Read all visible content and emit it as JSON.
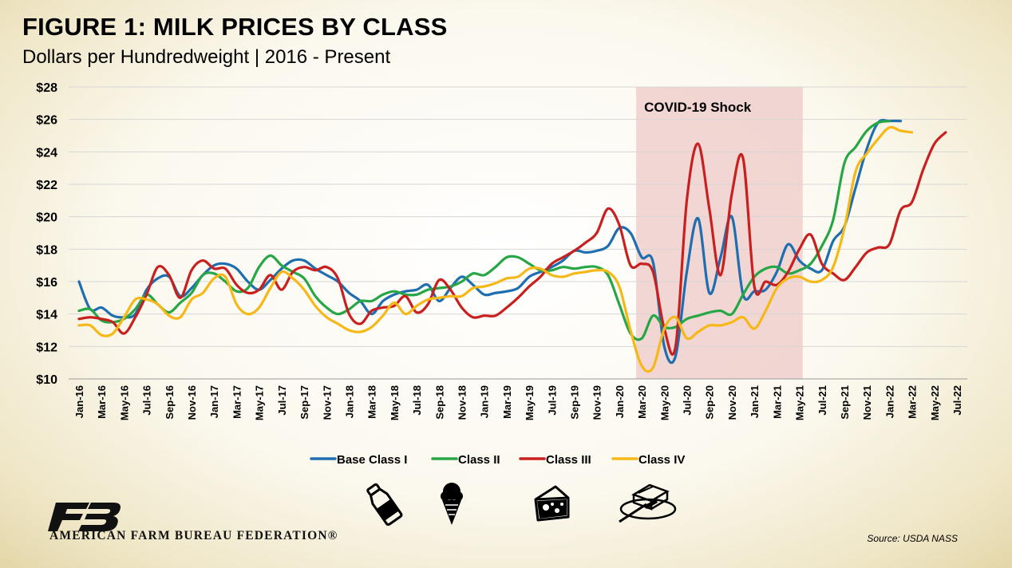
{
  "title": "FIGURE 1: MILK PRICES BY CLASS",
  "subtitle": "Dollars per Hundredweight | 2016 - Present",
  "source": "Source: USDA NASS",
  "organization": "AMERICAN FARM BUREAU FEDERATION®",
  "chart_data": {
    "type": "line",
    "ylim": [
      10,
      28
    ],
    "y_ticks": [
      10,
      12,
      14,
      16,
      18,
      20,
      22,
      24,
      26,
      28
    ],
    "y_tick_labels": [
      "$10",
      "$12",
      "$14",
      "$16",
      "$18",
      "$20",
      "$22",
      "$24",
      "$26",
      "$28"
    ],
    "x_tick_labels": [
      "Jan-16",
      "Mar-16",
      "May-16",
      "Jul-16",
      "Sep-16",
      "Nov-16",
      "Jan-17",
      "Mar-17",
      "May-17",
      "Jul-17",
      "Sep-17",
      "Nov-17",
      "Jan-18",
      "Mar-18",
      "May-18",
      "Jul-18",
      "Sep-18",
      "Nov-18",
      "Jan-19",
      "Mar-19",
      "May-19",
      "Jul-19",
      "Sep-19",
      "Nov-19",
      "Jan-20",
      "Mar-20",
      "May-20",
      "Jul-20",
      "Sep-20",
      "Nov-20",
      "Jan-21",
      "Mar-21",
      "May-21",
      "Jul-21",
      "Sep-21",
      "Nov-21",
      "Jan-22",
      "Mar-22",
      "May-22",
      "Jul-22"
    ],
    "annotation": {
      "label": "COVID-19 Shock",
      "x_start": "Mar-20",
      "x_end": "May-21",
      "color": "#efcfcd"
    },
    "legend_position": "bottom",
    "grid": "horizontal",
    "series": [
      {
        "name": "Base Class I",
        "color": "#1f6eb0",
        "values": [
          16.0,
          14.3,
          14.4,
          13.9,
          13.8,
          14.0,
          15.5,
          16.2,
          16.3,
          15.1,
          15.6,
          16.4,
          17.0,
          17.1,
          16.8,
          16.0,
          15.5,
          16.1,
          16.8,
          17.3,
          17.3,
          16.8,
          16.4,
          16.0,
          15.3,
          14.8,
          14.0,
          14.8,
          15.2,
          15.4,
          15.5,
          15.8,
          14.8,
          15.6,
          16.3,
          15.8,
          15.2,
          15.3,
          15.4,
          15.6,
          16.3,
          16.6,
          16.9,
          17.3,
          17.9,
          17.8,
          17.9,
          18.2,
          19.3,
          19.0,
          17.5,
          17.2,
          12.0,
          11.4,
          16.6,
          19.9,
          15.3,
          17.5,
          20.0,
          15.2,
          15.4,
          15.5,
          16.6,
          18.3,
          17.3,
          16.8,
          16.7,
          18.5,
          19.4,
          21.8,
          24.2,
          25.8,
          25.9,
          25.9
        ]
      },
      {
        "name": "Class II",
        "color": "#27a645",
        "values": [
          14.2,
          14.3,
          13.6,
          13.5,
          13.7,
          14.3,
          15.2,
          14.6,
          14.1,
          14.7,
          15.3,
          16.4,
          16.5,
          16.0,
          15.4,
          15.6,
          16.9,
          17.6,
          17.0,
          16.6,
          16.2,
          15.1,
          14.4,
          14.0,
          14.3,
          14.8,
          14.8,
          15.2,
          15.4,
          15.2,
          15.2,
          15.5,
          15.6,
          15.7,
          16.0,
          16.5,
          16.4,
          16.9,
          17.5,
          17.5,
          17.1,
          16.7,
          16.7,
          16.9,
          16.8,
          16.9,
          16.9,
          16.4,
          14.6,
          12.8,
          12.5,
          13.9,
          13.2,
          13.2,
          13.7,
          13.9,
          14.1,
          14.2,
          14.0,
          15.2,
          16.3,
          16.8,
          16.9,
          16.5,
          16.7,
          17.1,
          18.2,
          19.8,
          23.3,
          24.3,
          25.3,
          25.8,
          25.9
        ]
      },
      {
        "name": "Class III",
        "color": "#c8201e",
        "values": [
          13.7,
          13.8,
          13.7,
          13.5,
          12.8,
          13.8,
          15.2,
          16.9,
          16.4,
          15.0,
          16.7,
          17.3,
          16.8,
          16.8,
          15.8,
          15.3,
          15.5,
          16.4,
          15.5,
          16.6,
          16.9,
          16.7,
          16.9,
          16.2,
          14.0,
          13.4,
          14.2,
          14.4,
          14.5,
          15.1,
          14.1,
          14.6,
          16.1,
          15.5,
          14.4,
          13.8,
          13.9,
          13.9,
          14.4,
          15.0,
          15.7,
          16.3,
          17.1,
          17.5,
          17.9,
          18.4,
          19.0,
          20.5,
          19.5,
          17.0,
          17.1,
          16.6,
          13.1,
          12.0,
          21.0,
          24.5,
          20.5,
          16.4,
          21.4,
          23.6,
          15.7,
          16.0,
          15.8,
          16.6,
          18.0,
          18.9,
          17.1,
          16.5,
          16.1,
          16.9,
          17.8,
          18.1,
          18.3,
          20.4,
          20.9,
          22.9,
          24.5,
          25.2
        ]
      },
      {
        "name": "Class IV",
        "color": "#f6b816",
        "values": [
          13.3,
          13.3,
          12.7,
          12.8,
          13.8,
          14.9,
          14.9,
          14.6,
          13.9,
          13.8,
          14.9,
          15.3,
          16.2,
          16.3,
          14.6,
          14.0,
          14.4,
          15.6,
          16.6,
          16.2,
          15.5,
          14.5,
          13.8,
          13.4,
          13.0,
          12.9,
          13.2,
          13.9,
          14.7,
          14.0,
          14.5,
          14.9,
          15.0,
          15.1,
          15.1,
          15.6,
          15.7,
          15.9,
          16.2,
          16.3,
          16.8,
          16.8,
          16.4,
          16.3,
          16.5,
          16.6,
          16.7,
          16.6,
          15.7,
          13.0,
          10.8,
          10.7,
          13.1,
          13.8,
          12.5,
          12.9,
          13.3,
          13.3,
          13.5,
          13.8,
          13.1,
          14.2,
          15.6,
          16.2,
          16.3,
          16.0,
          16.1,
          16.9,
          19.3,
          22.8,
          23.9,
          24.8,
          25.5,
          25.3,
          25.2
        ]
      }
    ]
  },
  "legend_icons": [
    "milk-bottle-icon",
    "ice-cream-cone-icon",
    "cheese-icon",
    "butter-icon"
  ]
}
